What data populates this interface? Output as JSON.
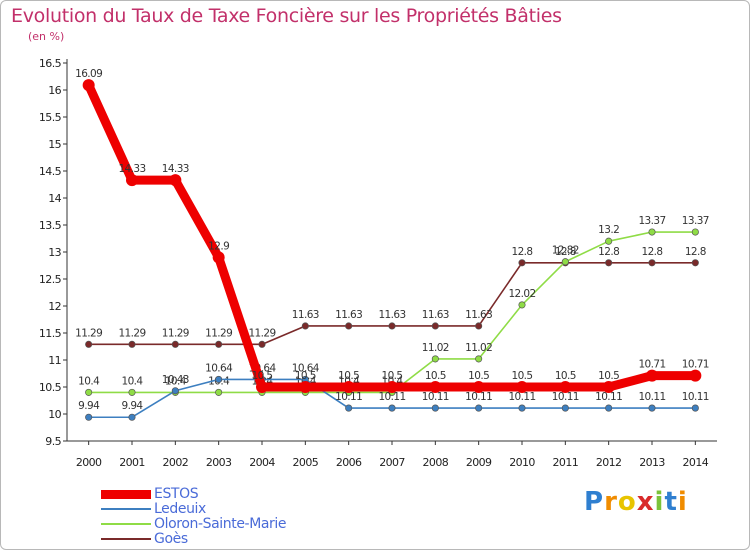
{
  "title": "Evolution du Taux de Taxe Foncière sur les Propriétés Bâties",
  "unit": "(en %)",
  "brand": "Proxiti",
  "chart_data": {
    "type": "line",
    "title": "Evolution du Taux de Taxe Foncière sur les Propriétés Bâties",
    "ylabel": "(en %)",
    "xlabel": "",
    "ylim": [
      9.5,
      16.5
    ],
    "yticks": [
      "9.5",
      "10",
      "10.5",
      "11",
      "11.5",
      "12",
      "12.5",
      "13",
      "13.5",
      "14",
      "14.5",
      "15",
      "15.5",
      "16",
      "16.5"
    ],
    "x": [
      "2000",
      "2001",
      "2002",
      "2003",
      "2004",
      "2005",
      "2006",
      "2007",
      "2008",
      "2009",
      "2010",
      "2011",
      "2012",
      "2013",
      "2014"
    ],
    "grid": false,
    "legend_position": "bottom-left",
    "series": [
      {
        "name": "ESTOS",
        "color": "#ee0000",
        "values": [
          16.09,
          14.33,
          14.33,
          12.9,
          10.5,
          10.5,
          10.5,
          10.5,
          10.5,
          10.5,
          10.5,
          10.5,
          10.5,
          10.71,
          10.71
        ]
      },
      {
        "name": "Ledeuix",
        "color": "#3d7fc0",
        "values": [
          9.94,
          9.94,
          10.43,
          10.64,
          10.64,
          10.64,
          10.11,
          10.11,
          10.11,
          10.11,
          10.11,
          10.11,
          10.11,
          10.11,
          10.11
        ]
      },
      {
        "name": "Oloron-Sainte-Marie",
        "color": "#8fdc46",
        "values": [
          10.4,
          10.4,
          10.4,
          10.4,
          10.4,
          10.4,
          10.4,
          10.4,
          11.02,
          11.02,
          12.02,
          12.82,
          13.2,
          13.37,
          13.37
        ]
      },
      {
        "name": "Goès",
        "color": "#7a2a2a",
        "values": [
          11.29,
          11.29,
          11.29,
          11.29,
          11.29,
          11.63,
          11.63,
          11.63,
          11.63,
          11.63,
          12.8,
          12.8,
          12.8,
          12.8,
          12.8
        ]
      }
    ]
  }
}
